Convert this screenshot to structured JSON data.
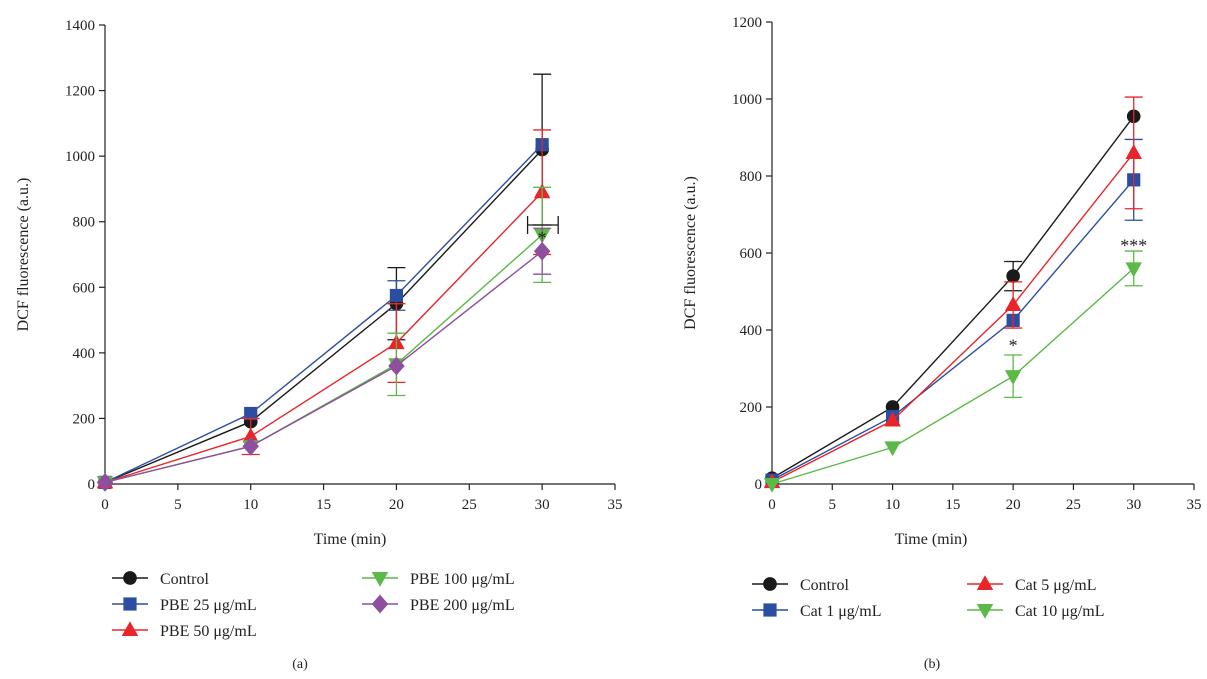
{
  "chart_data": [
    {
      "type": "line",
      "panel_label": "(a)",
      "xlabel": "Time (min)",
      "ylabel": "DCF fluorescence (a.u.)",
      "xlim": [
        0,
        35
      ],
      "ylim": [
        0,
        1400
      ],
      "xticks": [
        0,
        5,
        10,
        15,
        20,
        25,
        30,
        35
      ],
      "yticks": [
        0,
        200,
        400,
        600,
        800,
        1000,
        1200,
        1400
      ],
      "x": [
        0,
        10,
        20,
        30
      ],
      "grid": false,
      "legend_position": "bottom",
      "series": [
        {
          "name": "Control",
          "color": "#1a1a1a",
          "marker": "circle",
          "values": [
            5,
            190,
            550,
            1020
          ],
          "err": [
            0,
            0,
            110,
            230
          ]
        },
        {
          "name": "PBE 25 μg/mL",
          "color": "#2b4ea0",
          "marker": "square",
          "values": [
            5,
            215,
            575,
            1035
          ],
          "err": [
            0,
            0,
            45,
            0
          ]
        },
        {
          "name": "PBE 50 μg/mL",
          "color": "#e8262a",
          "marker": "triangle-up",
          "values": [
            5,
            145,
            430,
            890
          ],
          "err": [
            0,
            55,
            120,
            190
          ]
        },
        {
          "name": "PBE 100 μg/mL",
          "color": "#5bb947",
          "marker": "triangle-down",
          "values": [
            5,
            115,
            365,
            760
          ],
          "err": [
            0,
            0,
            95,
            145
          ]
        },
        {
          "name": "PBE 200 μg/mL",
          "color": "#8d4f9e",
          "marker": "diamond",
          "values": [
            5,
            115,
            360,
            710
          ],
          "err": [
            0,
            0,
            0,
            70
          ]
        }
      ],
      "annotations": [
        {
          "text": "*",
          "x": 30,
          "y": 750
        }
      ]
    },
    {
      "type": "line",
      "panel_label": "(b)",
      "xlabel": "Time (min)",
      "ylabel": "DCF fluorescence (a.u.)",
      "xlim": [
        0,
        35
      ],
      "ylim": [
        0,
        1200
      ],
      "xticks": [
        0,
        5,
        10,
        15,
        20,
        25,
        30,
        35
      ],
      "yticks": [
        0,
        200,
        400,
        600,
        800,
        1000,
        1200
      ],
      "x": [
        0,
        10,
        20,
        30
      ],
      "grid": false,
      "legend_position": "bottom",
      "series": [
        {
          "name": "Control",
          "color": "#1a1a1a",
          "marker": "circle",
          "values": [
            15,
            200,
            540,
            955
          ],
          "err": [
            0,
            0,
            38,
            0
          ]
        },
        {
          "name": "Cat 1 μg/mL",
          "color": "#2b4ea0",
          "marker": "square",
          "values": [
            10,
            175,
            425,
            790
          ],
          "err": [
            0,
            0,
            0,
            105
          ]
        },
        {
          "name": "Cat 5 μg/mL",
          "color": "#e8262a",
          "marker": "triangle-up",
          "values": [
            5,
            165,
            465,
            860
          ],
          "err": [
            0,
            0,
            60,
            145
          ]
        },
        {
          "name": "Cat 10 μg/mL",
          "color": "#5bb947",
          "marker": "triangle-down",
          "values": [
            0,
            95,
            280,
            560
          ],
          "err": [
            0,
            0,
            55,
            45
          ]
        }
      ],
      "annotations": [
        {
          "text": "*",
          "x": 20,
          "y": 360
        },
        {
          "text": "***",
          "x": 30,
          "y": 620
        }
      ]
    }
  ]
}
